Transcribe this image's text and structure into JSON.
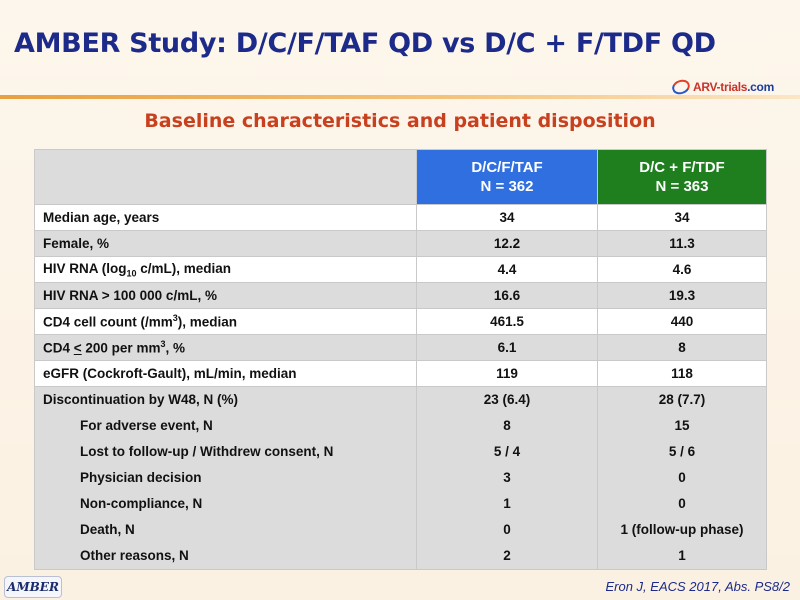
{
  "title": "AMBER Study: D/C/F/TAF QD vs D/C + F/TDF QD",
  "logo": {
    "main": "ARV-trials",
    "domain": ".com"
  },
  "subtitle": "Baseline characteristics and patient disposition",
  "columns": [
    {
      "name": "D/C/F/TAF",
      "n": "N = 362",
      "color": "#2f6fe0"
    },
    {
      "name": "D/C + F/TDF",
      "n": "N = 363",
      "color": "#1f7f1f"
    }
  ],
  "rows": [
    {
      "label": "Median age, years",
      "a": "34",
      "b": "34"
    },
    {
      "label": "Female, %",
      "a": "12.2",
      "b": "11.3"
    },
    {
      "label_pre": "HIV RNA (log",
      "label_sub": "10",
      "label_post": " c/mL), median",
      "a": "4.4",
      "b": "4.6"
    },
    {
      "label": "HIV RNA > 100 000 c/mL, %",
      "a": "16.6",
      "b": "19.3"
    },
    {
      "label_pre": "CD4 cell count (/mm",
      "label_sup": "3",
      "label_post": "), median",
      "a": "461.5",
      "b": "440"
    },
    {
      "label_pre": "CD4 ",
      "label_u": "<",
      "label_mid": " 200 per mm",
      "label_sup": "3",
      "label_post": ", %",
      "a": "6.1",
      "b": "8"
    },
    {
      "label": "eGFR (Cockroft-Gault), mL/min, median",
      "a": "119",
      "b": "118"
    }
  ],
  "discontinuation": [
    {
      "label": "Discontinuation by W48, N (%)",
      "a": "23 (6.4)",
      "b": "28 (7.7)"
    },
    {
      "label": "For adverse event, N",
      "a": "8",
      "b": "15"
    },
    {
      "label": "Lost to follow-up / Withdrew consent, N",
      "a": "5 / 4",
      "b": "5 / 6"
    },
    {
      "label": "Physician decision",
      "a": "3",
      "b": "0"
    },
    {
      "label": "Non-compliance, N",
      "a": "1",
      "b": "0"
    },
    {
      "label": "Death, N",
      "a": "0",
      "b": "1 (follow-up phase)"
    },
    {
      "label": "Other reasons, N",
      "a": "2",
      "b": "1"
    }
  ],
  "badge": "AMBER",
  "citation": "Eron J, EACS 2017, Abs. PS8/2"
}
